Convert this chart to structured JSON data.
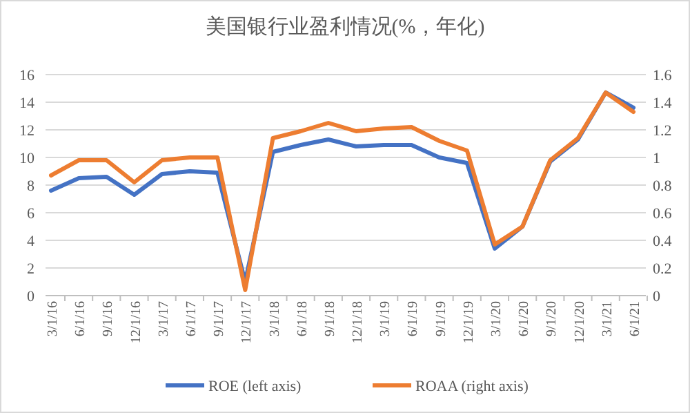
{
  "chart_data": {
    "type": "line",
    "title": "美国银行业盈利情况(%，年化)",
    "categories": [
      "3/1/16",
      "6/1/16",
      "9/1/16",
      "12/1/16",
      "3/1/17",
      "6/1/17",
      "9/1/17",
      "12/1/17",
      "3/1/18",
      "6/1/18",
      "9/1/18",
      "12/1/18",
      "3/1/19",
      "6/1/19",
      "9/1/19",
      "12/1/19",
      "3/1/20",
      "6/1/20",
      "9/1/20",
      "12/1/20",
      "3/1/21",
      "6/1/21"
    ],
    "series": [
      {
        "name": "ROE (left axis)",
        "color": "#4472c4",
        "values": [
          7.6,
          8.5,
          8.6,
          7.3,
          8.8,
          9.0,
          8.9,
          1.0,
          10.4,
          10.9,
          11.3,
          10.8,
          10.9,
          10.9,
          10.0,
          9.6,
          3.4,
          5.0,
          9.7,
          11.3,
          14.7,
          13.6
        ]
      },
      {
        "name": "ROAA (right axis)",
        "color": "#ed7d31",
        "axis": "y2",
        "values": [
          0.87,
          0.98,
          0.98,
          0.82,
          0.98,
          1.0,
          1.0,
          0.04,
          1.14,
          1.19,
          1.25,
          1.19,
          1.21,
          1.22,
          1.12,
          1.05,
          0.37,
          0.5,
          0.98,
          1.14,
          1.47,
          1.33
        ]
      }
    ],
    "ylim": [
      0,
      16
    ],
    "yticks": [
      0,
      2,
      4,
      6,
      8,
      10,
      12,
      14,
      16
    ],
    "y2lim": [
      0,
      1.6
    ],
    "y2ticks": [
      0,
      {
        "value": 0.2,
        "label": "0.2"
      },
      {
        "value": 0.4,
        "label": "0.4"
      },
      {
        "value": 0.6,
        "label": "0.6"
      },
      {
        "value": 0.8,
        "label": "0.8"
      },
      1,
      {
        "value": 1.2,
        "label": "1.2"
      },
      {
        "value": 1.4,
        "label": "1.4"
      },
      {
        "value": 1.6,
        "label": "1.6"
      }
    ],
    "grid": "y",
    "legend": "bottom",
    "line_style": "solid"
  }
}
